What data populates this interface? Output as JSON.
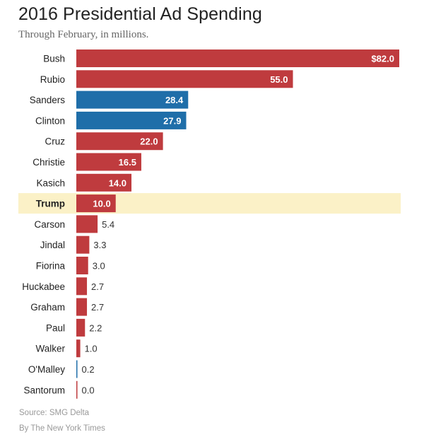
{
  "title": "2016 Presidential Ad Spending",
  "subtitle": "Through February, in millions.",
  "source": "Source: SMG Delta",
  "credit": "By The New York Times",
  "colors": {
    "republican": "#bf3b3e",
    "democrat": "#1f6ea9",
    "highlight": "#fbf1c7",
    "label_text": "#222222",
    "value_inside": "#ffffff",
    "value_outside": "#333333"
  },
  "chart_data": {
    "type": "bar",
    "orientation": "horizontal",
    "title": "2016 Presidential Ad Spending",
    "subtitle": "Through February, in millions.",
    "xlim": [
      0,
      82
    ],
    "grid": false,
    "categories": [
      "Bush",
      "Rubio",
      "Sanders",
      "Clinton",
      "Cruz",
      "Christie",
      "Kasich",
      "Trump",
      "Carson",
      "Jindal",
      "Fiorina",
      "Huckabee",
      "Graham",
      "Paul",
      "Walker",
      "O'Malley",
      "Santorum"
    ],
    "values": [
      82.0,
      55.0,
      28.4,
      27.9,
      22.0,
      16.5,
      14.0,
      10.0,
      5.4,
      3.3,
      3.0,
      2.7,
      2.7,
      2.2,
      1.0,
      0.2,
      0.0
    ],
    "value_labels": [
      "$82.0",
      "55.0",
      "28.4",
      "27.9",
      "22.0",
      "16.5",
      "14.0",
      "10.0",
      "5.4",
      "3.3",
      "3.0",
      "2.7",
      "2.7",
      "2.2",
      "1.0",
      "0.2",
      "0.0"
    ],
    "party": [
      "R",
      "R",
      "D",
      "D",
      "R",
      "R",
      "R",
      "R",
      "R",
      "R",
      "R",
      "R",
      "R",
      "R",
      "R",
      "D",
      "R"
    ],
    "highlighted": "Trump"
  }
}
